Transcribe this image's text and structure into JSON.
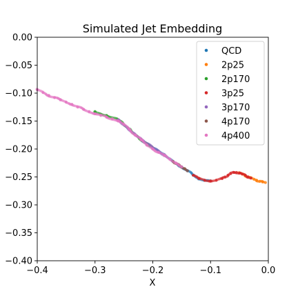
{
  "chart_data": {
    "type": "scatter",
    "title": "Simulated Jet Embedding",
    "xlabel": "X",
    "ylabel": "",
    "xlim": [
      -0.4,
      0.0
    ],
    "ylim": [
      -0.4,
      0.0
    ],
    "xticks": [
      -0.4,
      -0.3,
      -0.2,
      -0.1,
      0.0
    ],
    "xtick_labels": [
      "−0.4",
      "−0.3",
      "−0.2",
      "−0.1",
      "0.0"
    ],
    "yticks": [
      0.0,
      -0.05,
      -0.1,
      -0.15,
      -0.2,
      -0.25,
      -0.3,
      -0.35,
      -0.4
    ],
    "ytick_labels": [
      "0.00",
      "−0.05",
      "−0.10",
      "−0.15",
      "−0.20",
      "−0.25",
      "−0.30",
      "−0.35",
      "−0.40"
    ],
    "grid": false,
    "legend_position": "top-right",
    "series": [
      {
        "name": "QCD",
        "color": "#1f77b4",
        "x": [
          -0.22,
          -0.2,
          -0.18,
          -0.165,
          -0.15,
          -0.14,
          -0.13,
          -0.12,
          -0.11,
          -0.1
        ],
        "y": [
          -0.183,
          -0.198,
          -0.211,
          -0.222,
          -0.232,
          -0.239,
          -0.247,
          -0.253,
          -0.256,
          -0.257
        ]
      },
      {
        "name": "2p25",
        "color": "#ff7f0e",
        "x": [
          -0.05,
          -0.045,
          -0.04,
          -0.035,
          -0.03,
          -0.025,
          -0.02,
          -0.015,
          -0.01,
          -0.005
        ],
        "y": [
          -0.243,
          -0.245,
          -0.247,
          -0.25,
          -0.252,
          -0.254,
          -0.256,
          -0.258,
          -0.259,
          -0.26
        ]
      },
      {
        "name": "2p170",
        "color": "#2ca02c",
        "x": [
          -0.3,
          -0.28,
          -0.26,
          -0.24,
          -0.22,
          -0.2
        ],
        "y": [
          -0.133,
          -0.14,
          -0.148,
          -0.165,
          -0.183,
          -0.198
        ]
      },
      {
        "name": "3p25",
        "color": "#d62728",
        "x": [
          -0.13,
          -0.12,
          -0.11,
          -0.1,
          -0.09,
          -0.08,
          -0.075,
          -0.07,
          -0.065,
          -0.06,
          -0.055,
          -0.05,
          -0.045,
          -0.04,
          -0.035,
          -0.03
        ],
        "y": [
          -0.247,
          -0.253,
          -0.256,
          -0.257,
          -0.256,
          -0.253,
          -0.25,
          -0.247,
          -0.244,
          -0.242,
          -0.242,
          -0.243,
          -0.245,
          -0.247,
          -0.25,
          -0.252
        ]
      },
      {
        "name": "3p170",
        "color": "#9467bd",
        "x": [
          -0.26,
          -0.24,
          -0.22,
          -0.2,
          -0.18
        ],
        "y": [
          -0.148,
          -0.165,
          -0.183,
          -0.198,
          -0.211
        ]
      },
      {
        "name": "4p170",
        "color": "#8c564b",
        "x": [
          -0.165,
          -0.16,
          -0.155,
          -0.15,
          -0.145,
          -0.14
        ],
        "y": [
          -0.222,
          -0.226,
          -0.229,
          -0.232,
          -0.235,
          -0.239
        ]
      },
      {
        "name": "4p400",
        "color": "#e377c2",
        "x": [
          -0.4,
          -0.39,
          -0.38,
          -0.37,
          -0.36,
          -0.35,
          -0.34,
          -0.33,
          -0.32,
          -0.31,
          -0.3,
          -0.29,
          -0.28,
          -0.27,
          -0.26,
          -0.25,
          -0.24,
          -0.23,
          -0.22,
          -0.21,
          -0.2,
          -0.19,
          -0.18,
          -0.17,
          -0.16,
          -0.15
        ],
        "y": [
          -0.094,
          -0.099,
          -0.104,
          -0.108,
          -0.112,
          -0.116,
          -0.12,
          -0.125,
          -0.129,
          -0.133,
          -0.137,
          -0.14,
          -0.143,
          -0.146,
          -0.15,
          -0.156,
          -0.165,
          -0.175,
          -0.184,
          -0.193,
          -0.2,
          -0.206,
          -0.212,
          -0.218,
          -0.225,
          -0.232
        ]
      }
    ]
  }
}
